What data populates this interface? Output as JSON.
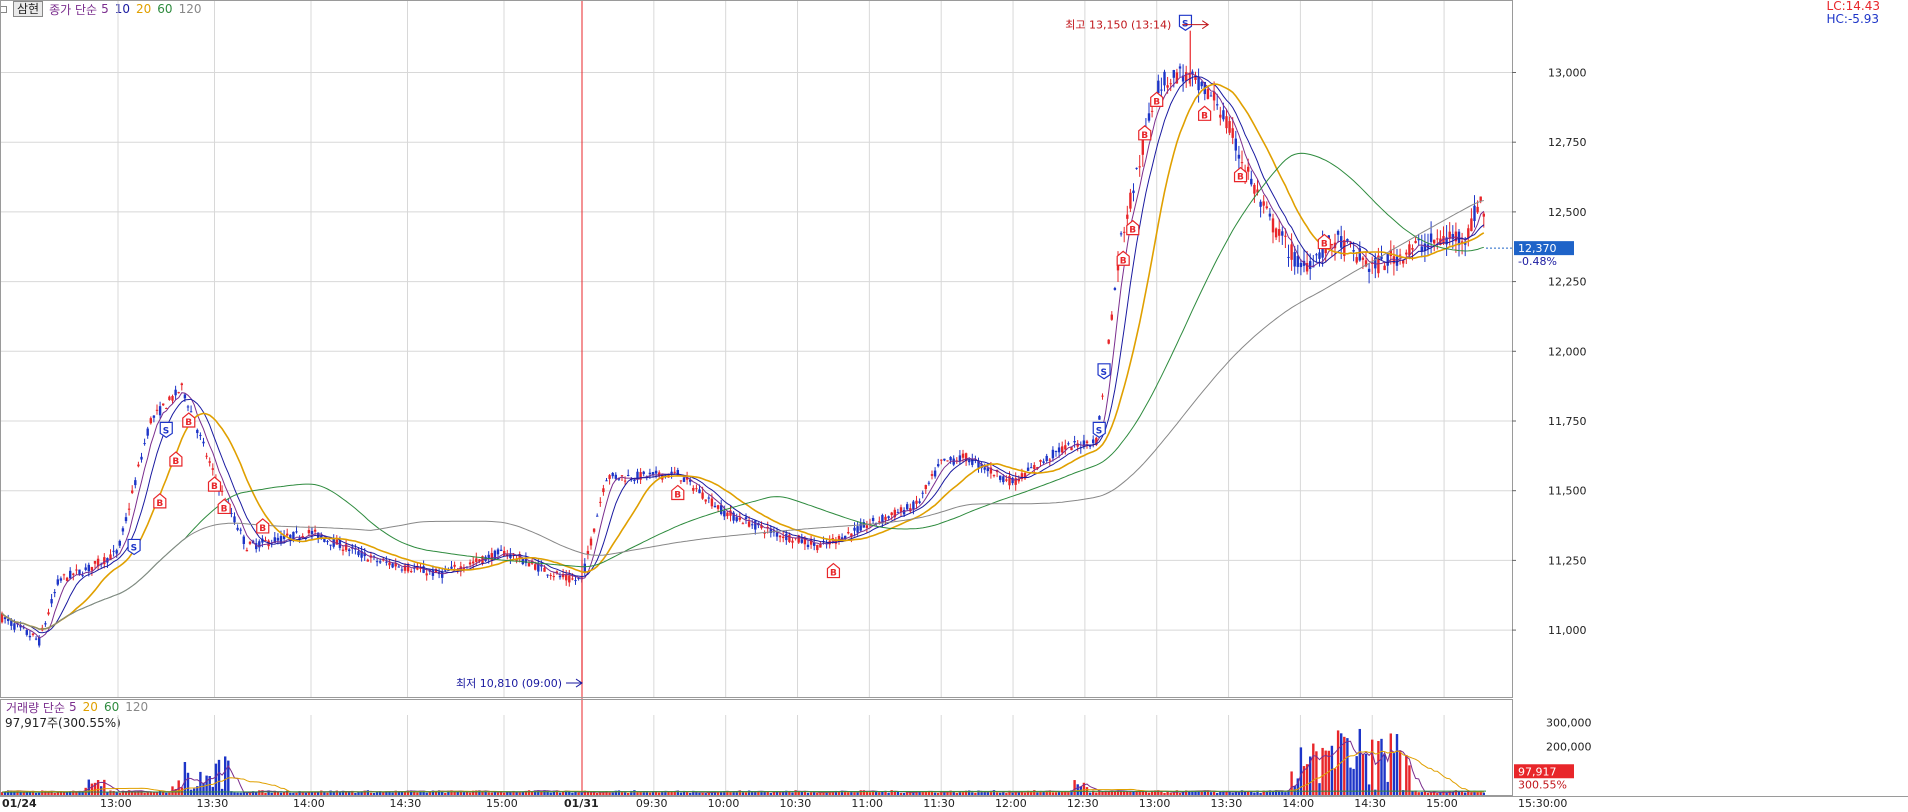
{
  "legend": {
    "stock_button": "삼현",
    "price_label": "종가 단순",
    "ma_periods": [
      "5",
      "10",
      "20",
      "60",
      "120"
    ],
    "ma_colors": [
      "#7b2e8e",
      "#1a1aa0",
      "#e0a000",
      "#2e8b3e",
      "#888888"
    ]
  },
  "volume_legend": {
    "label": "거래량 단순",
    "ma_periods": [
      "5",
      "20",
      "60",
      "120"
    ],
    "info": "97,917주(300.55%)"
  },
  "limits": {
    "lc": "LC:14.43",
    "hc": "HC:-5.93"
  },
  "current": {
    "price_label": "12,370",
    "change_label": "-0.48%"
  },
  "current_volume": {
    "value_label": "97,917",
    "pct_label": "300.55%"
  },
  "annotations": {
    "high": "최고 13,150 (13:14)",
    "low": "최저 10,810 (09:00)"
  },
  "markers": {
    "buy": "B",
    "sell": "S"
  },
  "colors": {
    "up": "#e8262a",
    "down": "#1d35c8",
    "grid": "#d8d8d8",
    "current_bg": "#1e63c8"
  },
  "chart_data": {
    "type": "candlestick",
    "price_axis": {
      "ticks": [
        11000,
        11250,
        11500,
        11750,
        12000,
        12250,
        12500,
        12750,
        13000
      ],
      "tick_labels": [
        "11,000",
        "11,250",
        "11,500",
        "11,750",
        "12,000",
        "12,250",
        "12,500",
        "12,750",
        "13,000"
      ],
      "range": [
        10760,
        13260
      ]
    },
    "volume_axis": {
      "ticks": [
        200000,
        300000
      ],
      "tick_labels": [
        "200,000",
        "300,000"
      ],
      "range": [
        0,
        330000
      ]
    },
    "time_axis": {
      "labels": [
        "01/24",
        "13:00",
        "13:30",
        "14:00",
        "14:30",
        "15:00",
        "01/31",
        "09:30",
        "10:00",
        "10:30",
        "11:00",
        "11:30",
        "12:00",
        "12:30",
        "13:00",
        "13:30",
        "14:00",
        "14:30",
        "15:00",
        "15:30:00"
      ]
    },
    "trend_knots": [
      {
        "t": "01/24 12:00",
        "price": 11050
      },
      {
        "t": "01/24 12:20",
        "price": 10960
      },
      {
        "t": "01/24 12:30",
        "price": 11180
      },
      {
        "t": "01/24 12:45",
        "price": 11220
      },
      {
        "t": "01/24 13:00",
        "price": 11280
      },
      {
        "t": "01/24 13:10",
        "price": 11750
      },
      {
        "t": "01/24 13:20",
        "price": 11870
      },
      {
        "t": "01/24 13:30",
        "price": 11550
      },
      {
        "t": "01/24 13:40",
        "price": 11300
      },
      {
        "t": "01/24 14:00",
        "price": 11350
      },
      {
        "t": "01/24 14:20",
        "price": 11250
      },
      {
        "t": "01/24 14:40",
        "price": 11200
      },
      {
        "t": "01/24 15:00",
        "price": 11280
      },
      {
        "t": "01/24 15:20",
        "price": 11180
      },
      {
        "t": "01/31 09:00",
        "price": 11180
      },
      {
        "t": "01/31 09:10",
        "price": 11550
      },
      {
        "t": "01/31 09:20",
        "price": 11550
      },
      {
        "t": "01/31 09:40",
        "price": 11560
      },
      {
        "t": "01/31 10:00",
        "price": 11420
      },
      {
        "t": "01/31 10:20",
        "price": 11350
      },
      {
        "t": "01/31 10:40",
        "price": 11300
      },
      {
        "t": "01/31 11:00",
        "price": 11380
      },
      {
        "t": "01/31 11:20",
        "price": 11450
      },
      {
        "t": "01/31 11:30",
        "price": 11600
      },
      {
        "t": "01/31 11:40",
        "price": 11620
      },
      {
        "t": "01/31 12:00",
        "price": 11530
      },
      {
        "t": "01/31 12:20",
        "price": 11650
      },
      {
        "t": "01/31 12:35",
        "price": 11680
      },
      {
        "t": "01/31 12:45",
        "price": 12400
      },
      {
        "t": "01/31 12:52",
        "price": 12650
      },
      {
        "t": "01/31 13:00",
        "price": 12950
      },
      {
        "t": "01/31 13:10",
        "price": 13000
      },
      {
        "t": "01/31 13:25",
        "price": 12900
      },
      {
        "t": "01/31 13:45",
        "price": 12500
      },
      {
        "t": "01/31 14:00",
        "price": 12300
      },
      {
        "t": "01/31 14:15",
        "price": 12400
      },
      {
        "t": "01/31 14:30",
        "price": 12300
      },
      {
        "t": "01/31 14:50",
        "price": 12380
      },
      {
        "t": "01/31 15:10",
        "price": 12420
      },
      {
        "t": "01/31 15:15",
        "price": 12550
      },
      {
        "t": "01/31 15:20",
        "price": 12370
      }
    ],
    "high": {
      "t": "01/31 13:14",
      "price": 13150
    },
    "low": {
      "t": "01/31 09:00",
      "price": 10810
    }
  }
}
